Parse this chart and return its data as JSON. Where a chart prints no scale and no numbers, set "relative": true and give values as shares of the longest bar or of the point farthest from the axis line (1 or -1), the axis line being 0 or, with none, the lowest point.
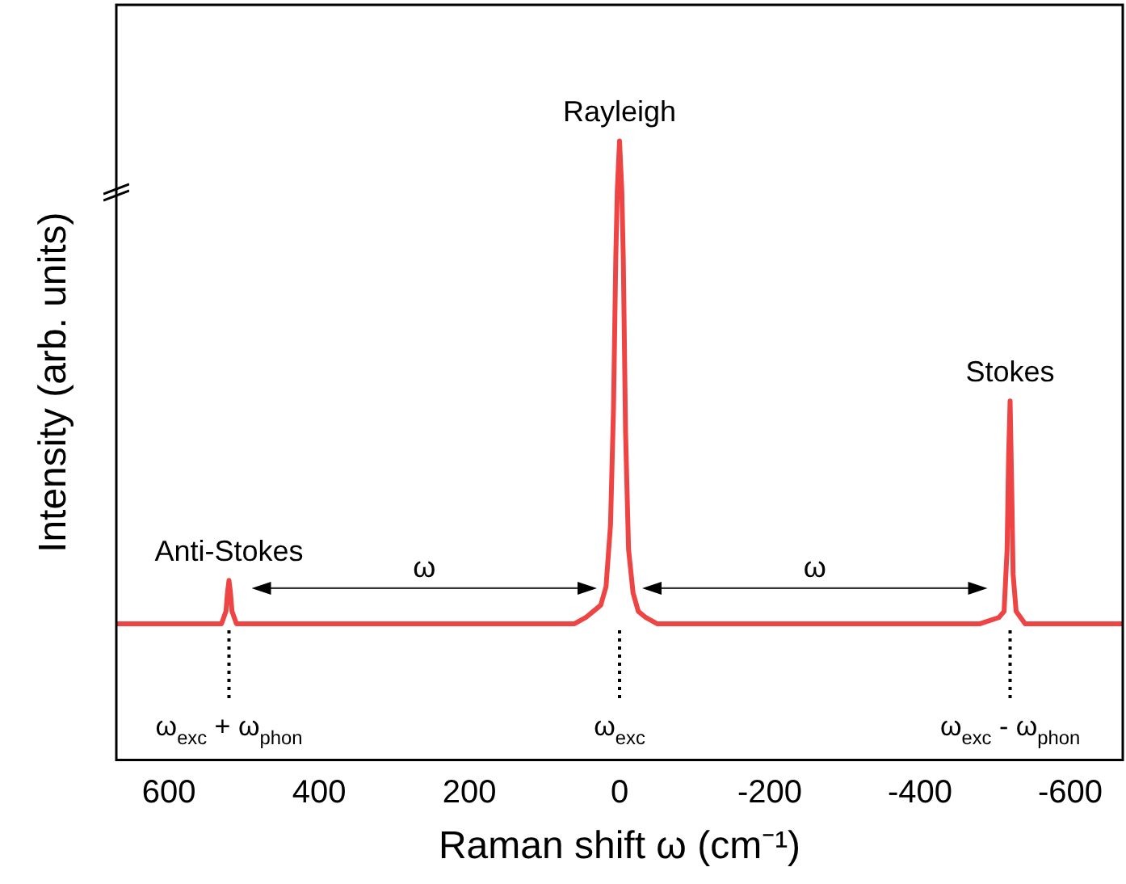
{
  "chart_data": {
    "type": "line",
    "relative": true,
    "xlabel": "Raman shift ω (cm⁻¹)",
    "ylabel": "Intensity (arb. units)",
    "xlim": [
      670,
      -670
    ],
    "xticks": [
      600,
      400,
      200,
      0,
      -200,
      -400,
      -600
    ],
    "grid": false,
    "legend": false,
    "marker": "none",
    "line_style": "solid",
    "series": [
      {
        "color": "#ee4444",
        "x": [
          670,
          560,
          530,
          524,
          522,
          520,
          518,
          516,
          510,
          480,
          300,
          100,
          60,
          45,
          35,
          25,
          18,
          12,
          8,
          5,
          3,
          0,
          -3,
          -5,
          -8,
          -12,
          -18,
          -25,
          -35,
          -50,
          -100,
          -300,
          -480,
          -505,
          -512,
          -516,
          -518,
          -520,
          -522,
          -524,
          -528,
          -540,
          -600,
          -670
        ],
        "values": [
          0.22,
          0.22,
          0.22,
          0.24,
          0.27,
          0.29,
          0.27,
          0.24,
          0.22,
          0.22,
          0.22,
          0.22,
          0.22,
          0.23,
          0.24,
          0.25,
          0.28,
          0.38,
          0.57,
          0.81,
          0.92,
          1,
          0.92,
          0.81,
          0.53,
          0.34,
          0.27,
          0.24,
          0.23,
          0.22,
          0.22,
          0.22,
          0.22,
          0.23,
          0.24,
          0.34,
          0.49,
          0.58,
          0.45,
          0.3,
          0.24,
          0.22,
          0.22,
          0.22
        ]
      }
    ],
    "ref_lines": [
      {
        "axis": "x",
        "value": 520,
        "label": "ω$_{exc}$ + ω$_{phon}$",
        "line_style": "dotted",
        "color": "#000000"
      },
      {
        "axis": "x",
        "value": 0,
        "label": "ω$_{exc}$",
        "line_style": "dotted",
        "color": "#000000"
      },
      {
        "axis": "x",
        "value": -520,
        "label": "ω$_{exc}$ - ω$_{phon}$",
        "line_style": "dotted",
        "color": "#000000"
      }
    ],
    "annotations": [
      {
        "text": "Anti-Stokes",
        "x": 520,
        "y": 0.29
      },
      {
        "text": "Rayleigh",
        "x": 0,
        "y": 1
      },
      {
        "text": "Stokes",
        "x": -520,
        "y": 0.58
      },
      "ω",
      "ω"
    ]
  }
}
